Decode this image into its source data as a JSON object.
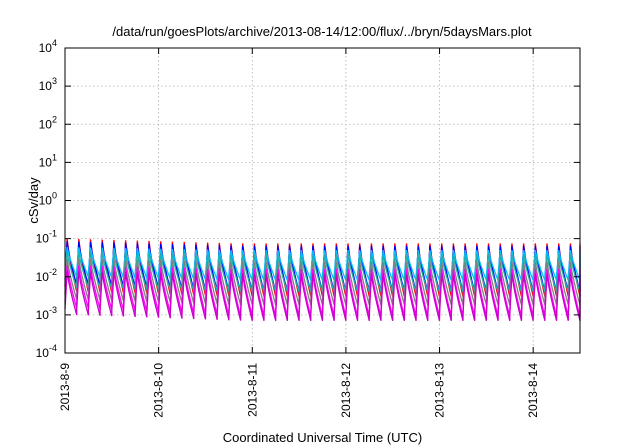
{
  "chart_data": {
    "type": "line",
    "title": "/data/run/goesPlots/archive/2013-08-14/12:00/flux/../bryn/5daysMars.plot",
    "xlabel": "Coordinated Universal Time (UTC)",
    "ylabel": "cSv/day",
    "yscale": "log",
    "ylim": [
      0.0001,
      10000
    ],
    "y_ticks": [
      {
        "base": "10",
        "exp": "-4",
        "value": 0.0001
      },
      {
        "base": "10",
        "exp": "-3",
        "value": 0.001
      },
      {
        "base": "10",
        "exp": "-2",
        "value": 0.01
      },
      {
        "base": "10",
        "exp": "-1",
        "value": 0.1
      },
      {
        "base": "10",
        "exp": "0",
        "value": 1
      },
      {
        "base": "10",
        "exp": "1",
        "value": 10
      },
      {
        "base": "10",
        "exp": "2",
        "value": 100
      },
      {
        "base": "10",
        "exp": "3",
        "value": 1000
      },
      {
        "base": "10",
        "exp": "4",
        "value": 10000
      }
    ],
    "xlim": [
      "2013-8-9",
      "2013-8-14 12:00"
    ],
    "x_ticks": [
      {
        "label": "2013-8-9",
        "day": 0
      },
      {
        "label": "2013-8-10",
        "day": 1
      },
      {
        "label": "2013-8-11",
        "day": 2
      },
      {
        "label": "2013-8-12",
        "day": 3
      },
      {
        "label": "2013-8-13",
        "day": 4
      },
      {
        "label": "2013-8-14",
        "day": 5
      }
    ],
    "grid": true,
    "sawtooth_period_hours": 3,
    "series": [
      {
        "color": "#ff0000",
        "peak": 0.1,
        "trough": 0.004,
        "late_peak": 0.075,
        "late_trough": 0.003
      },
      {
        "color": "#0000ff",
        "peak": 0.085,
        "trough": 0.006,
        "late_peak": 0.065,
        "late_trough": 0.004
      },
      {
        "color": "#00bfff",
        "peak": 0.06,
        "trough": 0.01,
        "late_peak": 0.05,
        "late_trough": 0.008
      },
      {
        "color": "#20b2aa",
        "peak": 0.045,
        "trough": 0.005,
        "late_peak": 0.038,
        "late_trough": 0.004
      },
      {
        "color": "#808080",
        "peak": 0.03,
        "trough": 0.0025,
        "late_peak": 0.025,
        "late_trough": 0.0018
      },
      {
        "color": "#ff00ff",
        "peak": 0.02,
        "trough": 0.0015,
        "late_peak": 0.016,
        "late_trough": 0.0009
      },
      {
        "color": "#cc00cc",
        "peak": 0.014,
        "trough": 0.001,
        "late_peak": 0.012,
        "late_trough": 0.0007
      }
    ]
  }
}
